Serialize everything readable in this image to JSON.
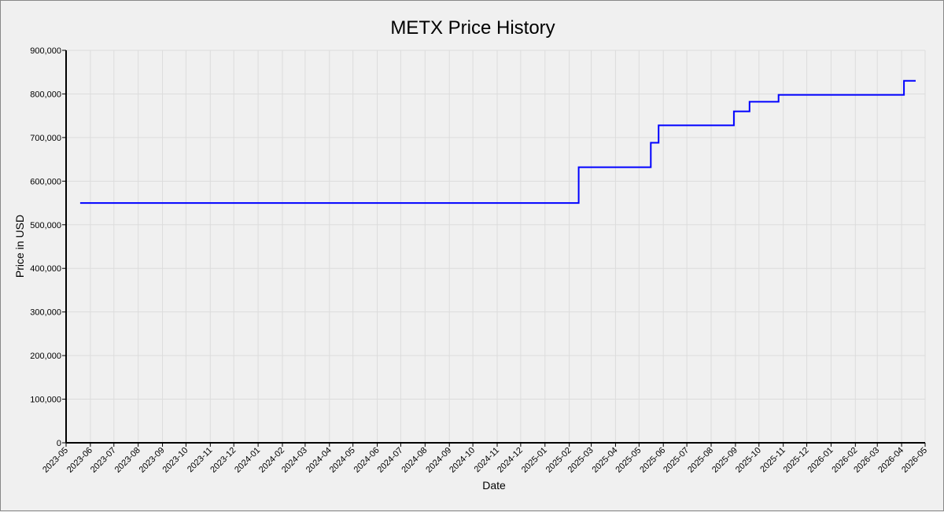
{
  "chart_data": {
    "type": "line",
    "title": "METX Price History",
    "xlabel": "Date",
    "ylabel": "Price in USD",
    "grid": true,
    "xlim": [
      "2023-05-01",
      "2026-05-01"
    ],
    "ylim": [
      0,
      900000
    ],
    "x_ticks": [
      "2023-05",
      "2023-06",
      "2023-07",
      "2023-08",
      "2023-09",
      "2023-10",
      "2023-11",
      "2023-12",
      "2024-01",
      "2024-02",
      "2024-03",
      "2024-04",
      "2024-05",
      "2024-06",
      "2024-07",
      "2024-08",
      "2024-09",
      "2024-10",
      "2024-11",
      "2024-12",
      "2025-01",
      "2025-02",
      "2025-03",
      "2025-04",
      "2025-05",
      "2025-06",
      "2025-07",
      "2025-08",
      "2025-09",
      "2025-10",
      "2025-11",
      "2025-12",
      "2026-01",
      "2026-02",
      "2026-03",
      "2026-04",
      "2026-05"
    ],
    "y_ticks": [
      0,
      100000,
      200000,
      300000,
      400000,
      500000,
      600000,
      700000,
      800000,
      900000
    ],
    "y_tick_labels": [
      "0",
      "100,000",
      "200,000",
      "300,000",
      "400,000",
      "500,000",
      "600,000",
      "700,000",
      "800,000",
      "900,000"
    ],
    "series": [
      {
        "color": "#0000ff",
        "step": true,
        "points": [
          {
            "x": "2023-05-19",
            "y": 550000
          },
          {
            "x": "2025-02-13",
            "y": 632000
          },
          {
            "x": "2025-05-16",
            "y": 688000
          },
          {
            "x": "2025-05-26",
            "y": 728000
          },
          {
            "x": "2025-08-30",
            "y": 760000
          },
          {
            "x": "2025-09-19",
            "y": 782000
          },
          {
            "x": "2025-10-26",
            "y": 798000
          },
          {
            "x": "2026-04-04",
            "y": 830000
          },
          {
            "x": "2026-04-19",
            "y": 830000
          }
        ]
      }
    ]
  }
}
